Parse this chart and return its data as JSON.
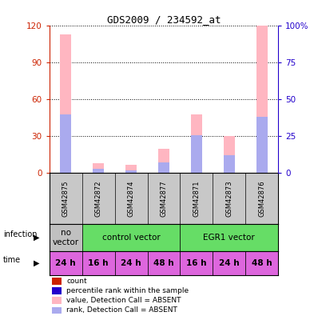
{
  "title": "GDS2009 / 234592_at",
  "samples": [
    "GSM42875",
    "GSM42872",
    "GSM42874",
    "GSM42877",
    "GSM42871",
    "GSM42873",
    "GSM42876"
  ],
  "bar_values_pink": [
    113,
    8,
    7,
    20,
    48,
    30,
    120
  ],
  "bar_values_blue_rank_pct": [
    40,
    3,
    2,
    7,
    26,
    12,
    38
  ],
  "ylim_left": [
    0,
    120
  ],
  "ylim_right": [
    0,
    100
  ],
  "yticks_left": [
    0,
    30,
    60,
    90,
    120
  ],
  "yticks_right": [
    0,
    25,
    50,
    75,
    100
  ],
  "yticklabels_right": [
    "0",
    "25",
    "50",
    "75",
    "100%"
  ],
  "time_labels": [
    "24 h",
    "16 h",
    "24 h",
    "48 h",
    "16 h",
    "24 h",
    "48 h"
  ],
  "time_color": "#dd66dd",
  "bar_color_pink": "#ffb6c1",
  "bar_color_blue": "#aaaaee",
  "bar_color_red": "#cc2200",
  "bar_color_darkblue": "#2200cc",
  "axis_left_color": "#cc2200",
  "axis_right_color": "#2200cc",
  "background_color": "#ffffff",
  "bar_width": 0.35,
  "infection_no_vector_color": "#c0c0c0",
  "infection_cv_color": "#66dd66",
  "infection_egr1_color": "#66dd66",
  "legend_items": [
    {
      "color": "#cc2200",
      "label": "count"
    },
    {
      "color": "#2200cc",
      "label": "percentile rank within the sample"
    },
    {
      "color": "#ffb6c1",
      "label": "value, Detection Call = ABSENT"
    },
    {
      "color": "#aaaaee",
      "label": "rank, Detection Call = ABSENT"
    }
  ]
}
